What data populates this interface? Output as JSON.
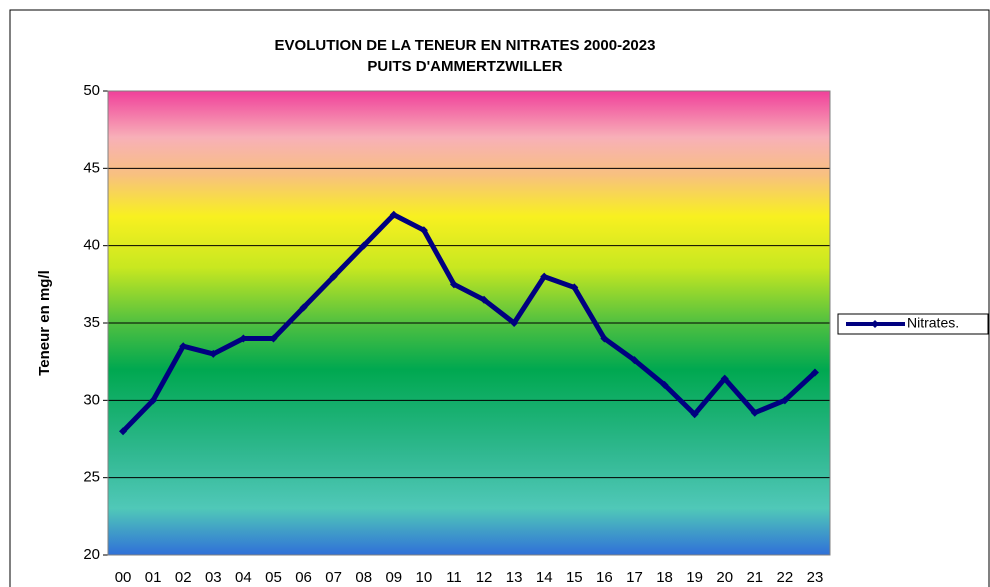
{
  "chart_data": {
    "type": "line",
    "title": "EVOLUTION DE LA TENEUR EN NITRATES 2000-2023",
    "subtitle": "PUITS D'AMMERTZWILLER",
    "y_label": "Teneur en mg/l",
    "categories": [
      "00",
      "01",
      "02",
      "03",
      "04",
      "05",
      "06",
      "07",
      "08",
      "09",
      "10",
      "11",
      "12",
      "13",
      "14",
      "15",
      "16",
      "17",
      "18",
      "19",
      "20",
      "21",
      "22",
      "23"
    ],
    "series": [
      {
        "name": "Nitrates.",
        "color": "#000080",
        "values": [
          28,
          30,
          33.5,
          33,
          34,
          34,
          36,
          38,
          40,
          42,
          41,
          37.5,
          36.5,
          35,
          38,
          37.3,
          34,
          32.6,
          31,
          29.1,
          31.4,
          29.2,
          30,
          31.8
        ]
      }
    ],
    "ylim": [
      20,
      50
    ],
    "yticks": [
      20,
      25,
      30,
      35,
      40,
      45,
      50
    ],
    "grid": true,
    "legend": "right"
  }
}
